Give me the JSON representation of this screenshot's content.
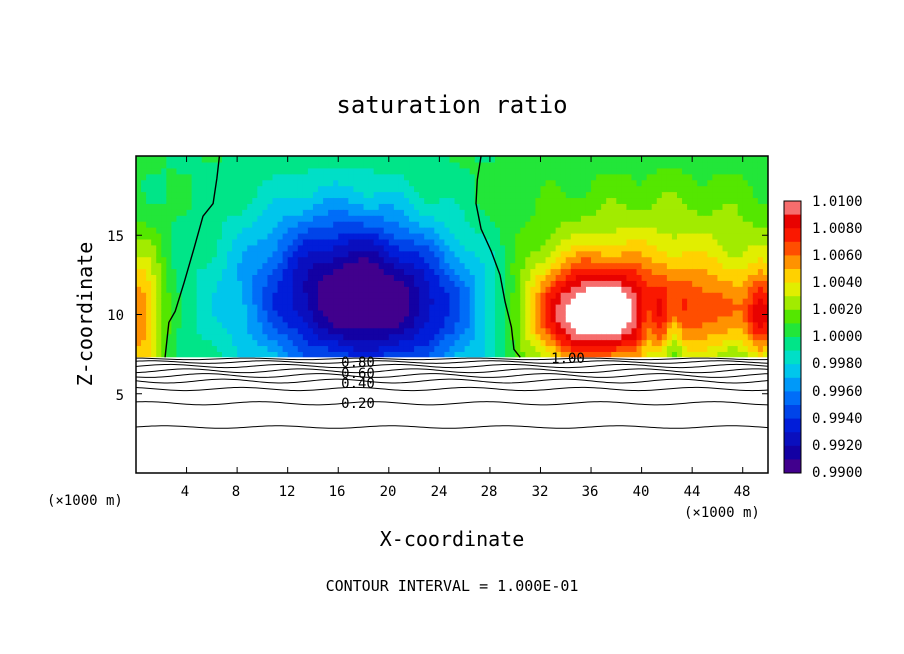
{
  "chart_data": {
    "type": "heatmap",
    "title": "saturation ratio",
    "xlabel": "X-coordinate",
    "ylabel": "Z-coordinate",
    "x_unit": "(×1000 m)",
    "xlim": [
      0,
      50
    ],
    "ylim": [
      0,
      20
    ],
    "x_ticks": [
      "4",
      "8",
      "12",
      "16",
      "20",
      "24",
      "28",
      "32",
      "36",
      "40",
      "44",
      "48"
    ],
    "x_tick_values": [
      4,
      8,
      12,
      16,
      20,
      24,
      28,
      32,
      36,
      40,
      44,
      48
    ],
    "y_ticks": [
      "5",
      "10",
      "15"
    ],
    "y_tick_values": [
      5,
      10,
      15
    ],
    "colorbar": {
      "min": 0.99,
      "max": 1.01,
      "labels": [
        "1.0100",
        "1.0080",
        "1.0060",
        "1.0040",
        "1.0020",
        "1.0000",
        "0.9980",
        "0.9960",
        "0.9940",
        "0.9920",
        "0.9900"
      ],
      "values": [
        1.01,
        1.008,
        1.006,
        1.004,
        1.002,
        1.0,
        0.998,
        0.996,
        0.994,
        0.992,
        0.99
      ]
    },
    "contour_labels": [
      {
        "text": "0.20",
        "x": 16.5,
        "z": 4.5
      },
      {
        "text": "0.40",
        "x": 16.5,
        "z": 5.8
      },
      {
        "text": "0.60",
        "x": 16.5,
        "z": 6.4
      },
      {
        "text": "0.80",
        "x": 16.5,
        "z": 6.9
      },
      {
        "text": "1.00",
        "x": 34.0,
        "z": 7.2
      }
    ],
    "contour_interval_text": "CONTOUR INTERVAL = 1.000E-01"
  }
}
